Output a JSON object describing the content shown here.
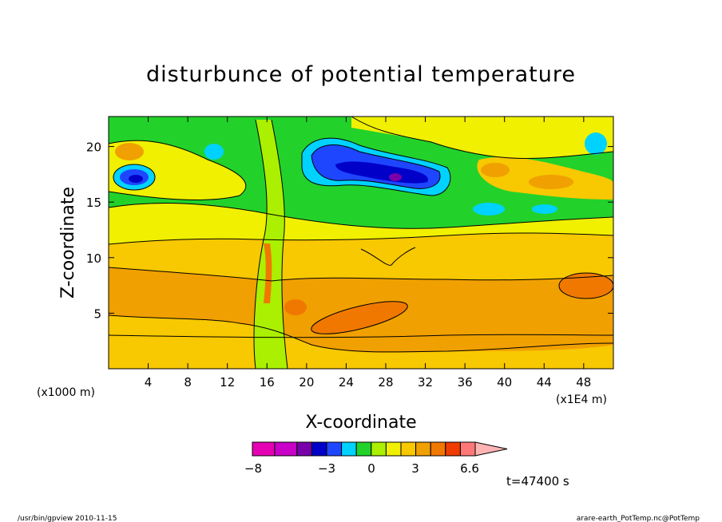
{
  "chart_data": {
    "type": "heatmap",
    "title": "disturbunce of potential temperature",
    "xlabel": "X-coordinate",
    "ylabel": "Z-coordinate",
    "x_unit_note": "(x1000 m)",
    "x_scale_note": "(x1E4 m)",
    "xlim": [
      0,
      51
    ],
    "ylim": [
      0,
      22.7
    ],
    "x_ticks": [
      4,
      8,
      12,
      16,
      20,
      24,
      28,
      32,
      36,
      40,
      44,
      48
    ],
    "y_ticks": [
      5,
      10,
      15,
      20
    ],
    "colorbar": {
      "labels": [
        {
          "value": -8,
          "text": "−8"
        },
        {
          "value": -3,
          "text": "−3"
        },
        {
          "value": 0,
          "text": "0"
        },
        {
          "value": 3,
          "text": "3"
        },
        {
          "value": 6.6,
          "text": "6.6"
        }
      ],
      "colors": [
        "#e600b4",
        "#c800c8",
        "#7800aa",
        "#0000c8",
        "#1e46ff",
        "#00d2ff",
        "#22d22a",
        "#aaf000",
        "#f0f000",
        "#f8c800",
        "#f0a000",
        "#f07800",
        "#f03c00",
        "#ff7878",
        "#ffb4b4"
      ]
    },
    "annotation": "t=47400 s"
  },
  "footer": {
    "left": "/usr/bin/gpview   2010-11-15",
    "right": "arare-earth_PotTemp.nc@PotTemp"
  },
  "colors": {
    "yellow": "#f0f000",
    "light_orange": "#f8c800",
    "orange": "#f0a000",
    "dark_orange": "#f07800",
    "yellow_green": "#aaf000",
    "green": "#22d22a",
    "cyan": "#00d2ff",
    "blue": "#1e46ff",
    "dark_blue": "#0000c8",
    "purple": "#7800aa"
  }
}
